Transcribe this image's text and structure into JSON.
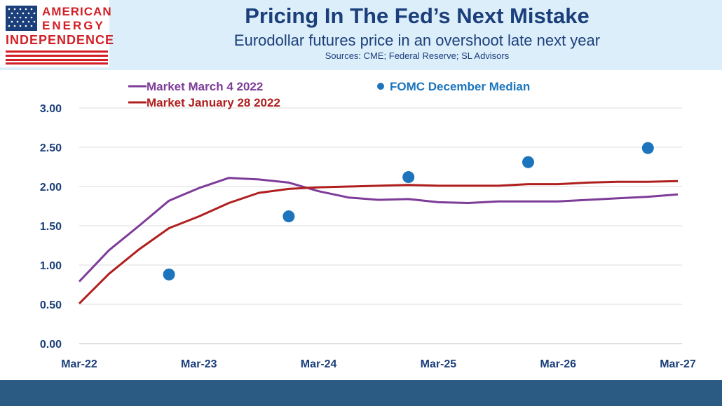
{
  "header": {
    "logo": {
      "line1": "AMERICAN",
      "line2": "ENERGY",
      "line3": "INDEPENDENCE"
    },
    "title": "Pricing In The Fed’s Next Mistake",
    "subtitle": "Eurodollar futures price in an overshoot late next year",
    "sources": "Sources: CME; Federal Reserve; SL Advisors"
  },
  "colors": {
    "header_bg": "#ddeefb",
    "title": "#1b3f7a",
    "footer": "#2b5a83",
    "logo_red": "#d21f26"
  },
  "chart_data": {
    "type": "line",
    "x_categories": [
      "Mar-22",
      "Mar-23",
      "Mar-24",
      "Mar-25",
      "Mar-26",
      "Mar-27"
    ],
    "ylim": [
      0,
      3
    ],
    "yticks": [
      "0.00",
      "0.50",
      "1.00",
      "1.50",
      "2.00",
      "2.50",
      "3.00"
    ],
    "grid": "horizontal",
    "legend": "top",
    "series": [
      {
        "name": "Market March 4 2022",
        "kind": "line",
        "color": "#7d3c98",
        "x": [
          2022.17,
          2022.42,
          2022.67,
          2022.92,
          2023.17,
          2023.42,
          2023.67,
          2023.92,
          2024.17,
          2024.42,
          2024.67,
          2024.92,
          2025.17,
          2025.42,
          2025.67,
          2025.92,
          2026.17,
          2026.42,
          2026.67,
          2026.92,
          2027.17
        ],
        "y": [
          0.79,
          1.19,
          1.5,
          1.82,
          1.98,
          2.11,
          2.09,
          2.05,
          1.94,
          1.86,
          1.83,
          1.84,
          1.8,
          1.79,
          1.81,
          1.81,
          1.81,
          1.83,
          1.85,
          1.87,
          1.9
        ]
      },
      {
        "name": "Market January 28 2022",
        "kind": "line",
        "color": "#b01e1e",
        "x": [
          2022.17,
          2022.42,
          2022.67,
          2022.92,
          2023.17,
          2023.42,
          2023.67,
          2023.92,
          2024.17,
          2024.42,
          2024.67,
          2024.92,
          2025.17,
          2025.42,
          2025.67,
          2025.92,
          2026.17,
          2026.42,
          2026.67,
          2026.92,
          2027.17
        ],
        "y": [
          0.51,
          0.89,
          1.2,
          1.47,
          1.62,
          1.79,
          1.92,
          1.97,
          1.99,
          2.0,
          2.01,
          2.02,
          2.01,
          2.01,
          2.01,
          2.03,
          2.03,
          2.05,
          2.06,
          2.06,
          2.07
        ]
      },
      {
        "name": "FOMC December Median",
        "kind": "scatter",
        "color": "#1c75bc",
        "x": [
          2022.92,
          2023.92,
          2024.92,
          2025.92,
          2026.92
        ],
        "y": [
          0.88,
          1.62,
          2.12,
          2.31,
          2.49
        ]
      }
    ]
  }
}
